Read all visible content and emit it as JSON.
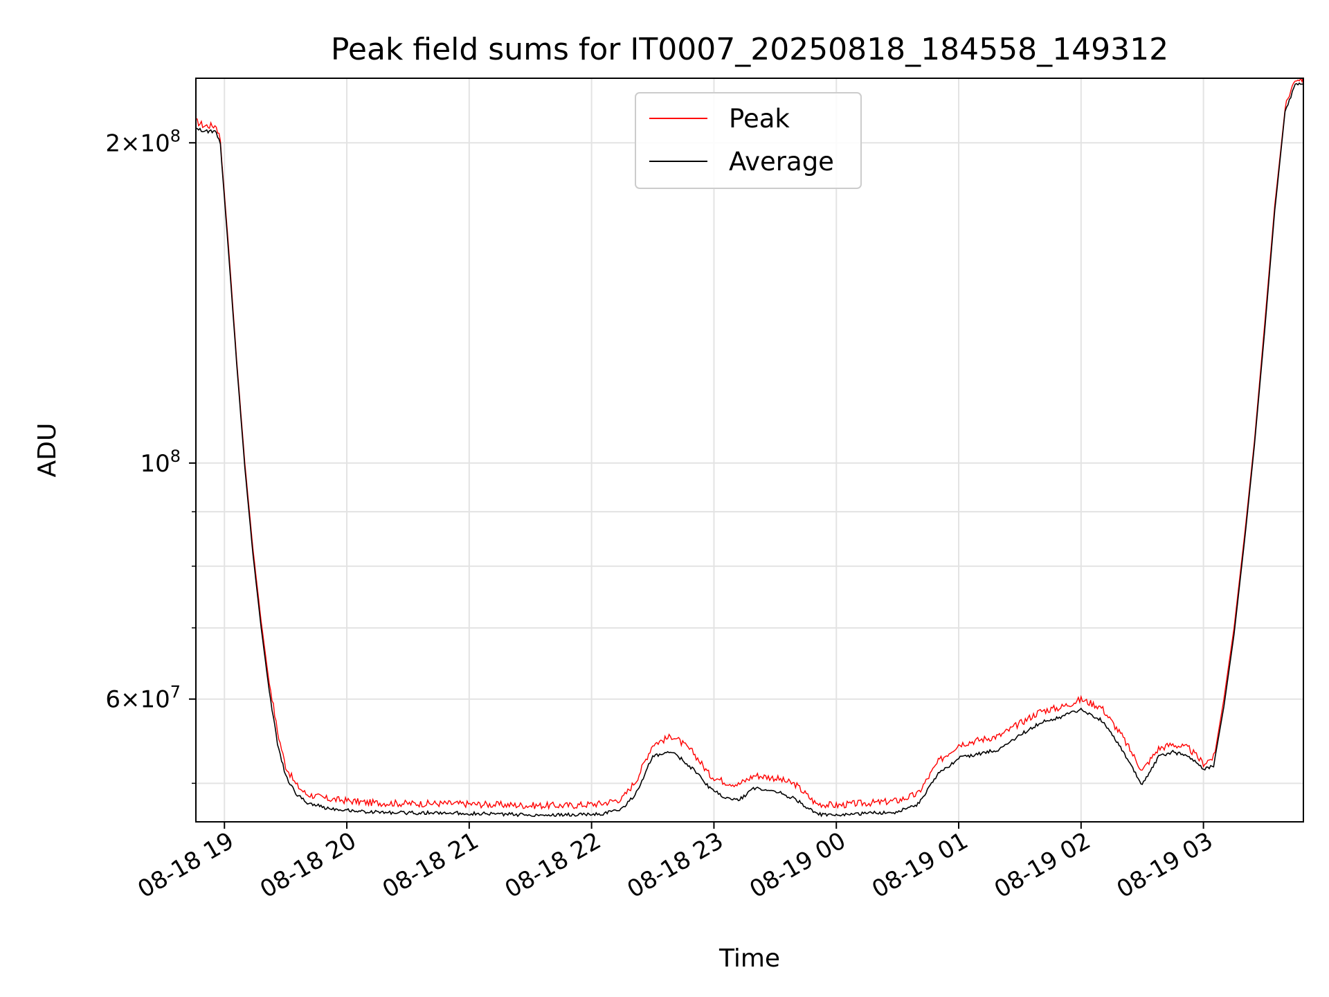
{
  "chart_data": {
    "type": "line",
    "title": "Peak field sums for IT0007_20250818_184558_149312",
    "xlabel": "Time",
    "ylabel": "ADU",
    "yscale": "log",
    "xlim": [
      "08-18 18:46",
      "08-19 03:49"
    ],
    "ylim": [
      46000000,
      230000000
    ],
    "grid": true,
    "legend_position": "upper center",
    "x_ticks": [
      "08-18 19",
      "08-18 20",
      "08-18 21",
      "08-18 22",
      "08-18 23",
      "08-19 00",
      "08-19 01",
      "08-19 02",
      "08-19 03"
    ],
    "y_ticks": [
      {
        "value": 200000000,
        "mantissa": "2",
        "exp": "8"
      },
      {
        "value": 100000000,
        "mantissa": "",
        "exp": "8"
      },
      {
        "value": 60000000,
        "mantissa": "6",
        "exp": "7"
      }
    ],
    "series": [
      {
        "name": "Peak",
        "color": "#ff0000",
        "x": [
          "08-18 18:46",
          "08-18 18:50",
          "08-18 18:56",
          "08-18 18:58",
          "08-18 19:02",
          "08-18 19:06",
          "08-18 19:10",
          "08-18 19:14",
          "08-18 19:18",
          "08-18 19:22",
          "08-18 19:26",
          "08-18 19:30",
          "08-18 19:35",
          "08-18 19:40",
          "08-18 19:50",
          "08-18 20:00",
          "08-18 20:10",
          "08-18 20:30",
          "08-18 20:50",
          "08-18 21:10",
          "08-18 21:30",
          "08-18 21:50",
          "08-18 22:05",
          "08-18 22:15",
          "08-18 22:22",
          "08-18 22:30",
          "08-18 22:40",
          "08-18 22:50",
          "08-18 22:58",
          "08-18 23:05",
          "08-18 23:12",
          "08-18 23:20",
          "08-18 23:30",
          "08-18 23:40",
          "08-18 23:50",
          "08-19 00:00",
          "08-19 00:10",
          "08-19 00:20",
          "08-19 00:30",
          "08-19 00:40",
          "08-19 00:50",
          "08-19 01:00",
          "08-19 01:10",
          "08-19 01:20",
          "08-19 01:30",
          "08-19 01:40",
          "08-19 01:50",
          "08-19 02:00",
          "08-19 02:10",
          "08-19 02:20",
          "08-19 02:30",
          "08-19 02:38",
          "08-19 02:45",
          "08-19 02:53",
          "08-19 03:00",
          "08-19 03:05",
          "08-19 03:10",
          "08-19 03:15",
          "08-19 03:20",
          "08-19 03:25",
          "08-19 03:30",
          "08-19 03:35",
          "08-19 03:40",
          "08-19 03:45",
          "08-19 03:49"
        ],
        "y": [
          208000000,
          206000000,
          206000000,
          200000000,
          160000000,
          125000000,
          100000000,
          83000000,
          71000000,
          62000000,
          55500000,
          51500000,
          49500000,
          48500000,
          48000000,
          47800000,
          47600000,
          47500000,
          47500000,
          47400000,
          47300000,
          47300000,
          47500000,
          48000000,
          50000000,
          54000000,
          55000000,
          53000000,
          50500000,
          49800000,
          49500000,
          50500000,
          50200000,
          49500000,
          47500000,
          47300000,
          47500000,
          47600000,
          47800000,
          48500000,
          52000000,
          54000000,
          54500000,
          55000000,
          56500000,
          58000000,
          58500000,
          59500000,
          58500000,
          55000000,
          51000000,
          53500000,
          54000000,
          53500000,
          51800000,
          52500000,
          60000000,
          70000000,
          85000000,
          105000000,
          135000000,
          175000000,
          215000000,
          228000000,
          228000000
        ]
      },
      {
        "name": "Average",
        "color": "#000000",
        "x": [
          "08-18 18:46",
          "08-18 18:50",
          "08-18 18:56",
          "08-18 18:58",
          "08-18 19:02",
          "08-18 19:06",
          "08-18 19:10",
          "08-18 19:14",
          "08-18 19:18",
          "08-18 19:22",
          "08-18 19:26",
          "08-18 19:30",
          "08-18 19:35",
          "08-18 19:40",
          "08-18 19:50",
          "08-18 20:00",
          "08-18 20:10",
          "08-18 20:30",
          "08-18 20:50",
          "08-18 21:10",
          "08-18 21:30",
          "08-18 21:50",
          "08-18 22:05",
          "08-18 22:15",
          "08-18 22:22",
          "08-18 22:30",
          "08-18 22:40",
          "08-18 22:50",
          "08-18 22:58",
          "08-18 23:05",
          "08-18 23:12",
          "08-18 23:20",
          "08-18 23:30",
          "08-18 23:40",
          "08-18 23:50",
          "08-19 00:00",
          "08-19 00:10",
          "08-19 00:20",
          "08-19 00:30",
          "08-19 00:40",
          "08-19 00:50",
          "08-19 01:00",
          "08-19 01:10",
          "08-19 01:20",
          "08-19 01:30",
          "08-19 01:40",
          "08-19 01:50",
          "08-19 02:00",
          "08-19 02:10",
          "08-19 02:20",
          "08-19 02:30",
          "08-19 02:38",
          "08-19 02:45",
          "08-19 02:53",
          "08-19 03:00",
          "08-19 03:05",
          "08-19 03:10",
          "08-19 03:15",
          "08-19 03:20",
          "08-19 03:25",
          "08-19 03:30",
          "08-19 03:35",
          "08-19 03:40",
          "08-19 03:45",
          "08-19 03:49"
        ],
        "y": [
          207000000,
          205000000,
          205000000,
          199000000,
          158000000,
          124000000,
          99000000,
          82000000,
          70000000,
          61000000,
          54500000,
          50800000,
          48900000,
          48000000,
          47400000,
          47200000,
          47000000,
          46900000,
          46900000,
          46800000,
          46700000,
          46700000,
          46800000,
          47300000,
          49000000,
          53000000,
          53500000,
          51500000,
          49500000,
          48500000,
          48200000,
          49500000,
          49200000,
          48300000,
          46800000,
          46600000,
          46800000,
          46900000,
          47000000,
          47800000,
          51000000,
          52800000,
          53300000,
          53800000,
          55500000,
          57000000,
          57700000,
          58700000,
          57300000,
          53800000,
          49800000,
          53000000,
          53500000,
          53000000,
          51500000,
          52000000,
          59000000,
          69000000,
          84000000,
          104000000,
          133000000,
          173000000,
          214000000,
          227000000,
          227000000
        ]
      }
    ]
  }
}
